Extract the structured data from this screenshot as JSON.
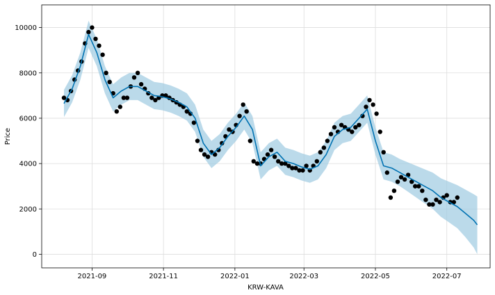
{
  "chart_data": {
    "type": "scatter",
    "title": "",
    "xlabel": "KRW-KAVA",
    "ylabel": "Price",
    "xlim": [
      "2021-07-20",
      "2022-08-07"
    ],
    "ylim": [
      -600,
      11000
    ],
    "x_ticks": [
      "2021-09",
      "2021-11",
      "2022-01",
      "2022-03",
      "2022-05",
      "2022-07"
    ],
    "y_ticks": [
      0,
      2000,
      4000,
      6000,
      8000,
      10000
    ],
    "grid": true,
    "colors": {
      "observed": "#000000",
      "forecast": "#0072B2",
      "interval": "#9ecae1"
    },
    "series": [
      {
        "role": "observed",
        "x": [
          "2021-08-08",
          "2021-08-11",
          "2021-08-14",
          "2021-08-17",
          "2021-08-20",
          "2021-08-23",
          "2021-08-26",
          "2021-08-29",
          "2021-09-01",
          "2021-09-04",
          "2021-09-07",
          "2021-09-10",
          "2021-09-13",
          "2021-09-16",
          "2021-09-19",
          "2021-09-22",
          "2021-09-25",
          "2021-09-28",
          "2021-10-01",
          "2021-10-04",
          "2021-10-07",
          "2021-10-10",
          "2021-10-13",
          "2021-10-16",
          "2021-10-19",
          "2021-10-22",
          "2021-10-25",
          "2021-10-28",
          "2021-10-31",
          "2021-11-03",
          "2021-11-06",
          "2021-11-09",
          "2021-11-12",
          "2021-11-15",
          "2021-11-18",
          "2021-11-21",
          "2021-11-24",
          "2021-11-27",
          "2021-11-30",
          "2021-12-03",
          "2021-12-06",
          "2021-12-09",
          "2021-12-12",
          "2021-12-15",
          "2021-12-18",
          "2021-12-21",
          "2021-12-24",
          "2021-12-27",
          "2021-12-30",
          "2022-01-02",
          "2022-01-05",
          "2022-01-08",
          "2022-01-11",
          "2022-01-14",
          "2022-01-17",
          "2022-01-20",
          "2022-01-23",
          "2022-01-26",
          "2022-01-29",
          "2022-02-01",
          "2022-02-04",
          "2022-02-07",
          "2022-02-10",
          "2022-02-13",
          "2022-02-16",
          "2022-02-19",
          "2022-02-22",
          "2022-02-25",
          "2022-02-28",
          "2022-03-03",
          "2022-03-06",
          "2022-03-09",
          "2022-03-12",
          "2022-03-15",
          "2022-03-18",
          "2022-03-21",
          "2022-03-24",
          "2022-03-27",
          "2022-03-30",
          "2022-04-02",
          "2022-04-05",
          "2022-04-08",
          "2022-04-11",
          "2022-04-14",
          "2022-04-17",
          "2022-04-20",
          "2022-04-23",
          "2022-04-26",
          "2022-04-29",
          "2022-05-02",
          "2022-05-05",
          "2022-05-08",
          "2022-05-11",
          "2022-05-14",
          "2022-05-17",
          "2022-05-20",
          "2022-05-23",
          "2022-05-26",
          "2022-05-29",
          "2022-06-01",
          "2022-06-04",
          "2022-06-07",
          "2022-06-10",
          "2022-06-13",
          "2022-06-16",
          "2022-06-19",
          "2022-06-22",
          "2022-06-25",
          "2022-06-28",
          "2022-07-01",
          "2022-07-04",
          "2022-07-07",
          "2022-07-10"
        ],
        "y": [
          6900,
          6800,
          7200,
          7700,
          8100,
          8500,
          9300,
          9800,
          10000,
          9500,
          9200,
          8800,
          8000,
          7600,
          7100,
          6300,
          6500,
          6900,
          6900,
          7400,
          7800,
          8000,
          7500,
          7300,
          7100,
          6900,
          6800,
          6900,
          7000,
          7000,
          6900,
          6800,
          6700,
          6600,
          6500,
          6300,
          6200,
          5800,
          5000,
          4600,
          4400,
          4300,
          4500,
          4400,
          4600,
          4900,
          5200,
          5500,
          5400,
          5700,
          6100,
          6600,
          6300,
          5000,
          4100,
          4000,
          4000,
          4200,
          4400,
          4600,
          4300,
          4100,
          4000,
          4000,
          3900,
          3800,
          3800,
          3700,
          3700,
          3900,
          3700,
          3900,
          4100,
          4500,
          4700,
          5000,
          5300,
          5600,
          5400,
          5700,
          5600,
          5500,
          5400,
          5600,
          5700,
          6100,
          6500,
          6800,
          6600,
          6200,
          5400,
          4500,
          3600,
          2500,
          2800,
          3200,
          3400,
          3300,
          3500,
          3200,
          3000,
          3000,
          2800,
          2400,
          2200,
          2200,
          2400,
          2300,
          2500,
          2600,
          2300,
          2300,
          2500
        ]
      },
      {
        "role": "forecast",
        "x": [
          "2021-08-08",
          "2021-08-15",
          "2021-08-22",
          "2021-08-29",
          "2021-09-05",
          "2021-09-12",
          "2021-09-19",
          "2021-09-26",
          "2021-10-03",
          "2021-10-10",
          "2021-10-17",
          "2021-10-24",
          "2021-10-31",
          "2021-11-07",
          "2021-11-14",
          "2021-11-21",
          "2021-11-28",
          "2021-12-05",
          "2021-12-12",
          "2021-12-19",
          "2021-12-26",
          "2022-01-02",
          "2022-01-09",
          "2022-01-16",
          "2022-01-23",
          "2022-01-30",
          "2022-02-06",
          "2022-02-13",
          "2022-02-20",
          "2022-02-27",
          "2022-03-06",
          "2022-03-13",
          "2022-03-20",
          "2022-03-27",
          "2022-04-03",
          "2022-04-10",
          "2022-04-17",
          "2022-04-24",
          "2022-05-01",
          "2022-05-08",
          "2022-05-15",
          "2022-05-22",
          "2022-05-29",
          "2022-06-05",
          "2022-06-12",
          "2022-06-19",
          "2022-06-26",
          "2022-07-03",
          "2022-07-10",
          "2022-07-17",
          "2022-07-24",
          "2022-07-27"
        ],
        "y": [
          6650,
          7300,
          8300,
          9700,
          8900,
          7700,
          6900,
          7200,
          7400,
          7400,
          7200,
          7000,
          6950,
          6850,
          6700,
          6500,
          6000,
          4900,
          4400,
          4700,
          5200,
          5600,
          6100,
          5500,
          3900,
          4300,
          4500,
          4100,
          4000,
          3850,
          3750,
          3900,
          4400,
          5200,
          5500,
          5600,
          6000,
          6400,
          5000,
          3900,
          3800,
          3600,
          3400,
          3200,
          3000,
          2800,
          2500,
          2300,
          2100,
          1800,
          1500,
          1300
        ]
      },
      {
        "role": "interval_upper",
        "x": [
          "2021-08-08",
          "2021-08-15",
          "2021-08-22",
          "2021-08-29",
          "2021-09-05",
          "2021-09-12",
          "2021-09-19",
          "2021-09-26",
          "2021-10-03",
          "2021-10-10",
          "2021-10-17",
          "2021-10-24",
          "2021-10-31",
          "2021-11-07",
          "2021-11-14",
          "2021-11-21",
          "2021-11-28",
          "2021-12-05",
          "2021-12-12",
          "2021-12-19",
          "2021-12-26",
          "2022-01-02",
          "2022-01-09",
          "2022-01-16",
          "2022-01-23",
          "2022-01-30",
          "2022-02-06",
          "2022-02-13",
          "2022-02-20",
          "2022-02-27",
          "2022-03-06",
          "2022-03-13",
          "2022-03-20",
          "2022-03-27",
          "2022-04-03",
          "2022-04-10",
          "2022-04-17",
          "2022-04-24",
          "2022-05-01",
          "2022-05-08",
          "2022-05-15",
          "2022-05-22",
          "2022-05-29",
          "2022-06-05",
          "2022-06-12",
          "2022-06-19",
          "2022-06-26",
          "2022-07-03",
          "2022-07-10",
          "2022-07-17",
          "2022-07-24",
          "2022-07-27"
        ],
        "y": [
          7250,
          7900,
          8900,
          10300,
          9500,
          8300,
          7500,
          7800,
          8000,
          8000,
          7800,
          7600,
          7550,
          7450,
          7300,
          7100,
          6600,
          5500,
          5000,
          5300,
          5800,
          6200,
          6700,
          6100,
          4500,
          4900,
          5100,
          4700,
          4600,
          4450,
          4350,
          4500,
          5000,
          5800,
          6100,
          6200,
          6600,
          7000,
          5600,
          4500,
          4400,
          4200,
          4050,
          3900,
          3750,
          3600,
          3350,
          3200,
          3050,
          2850,
          2650,
          2550
        ]
      },
      {
        "role": "interval_lower",
        "x": [
          "2021-08-08",
          "2021-08-15",
          "2021-08-22",
          "2021-08-29",
          "2021-09-05",
          "2021-09-12",
          "2021-09-19",
          "2021-09-26",
          "2021-10-03",
          "2021-10-10",
          "2021-10-17",
          "2021-10-24",
          "2021-10-31",
          "2021-11-07",
          "2021-11-14",
          "2021-11-21",
          "2021-11-28",
          "2021-12-05",
          "2021-12-12",
          "2021-12-19",
          "2021-12-26",
          "2022-01-02",
          "2022-01-09",
          "2022-01-16",
          "2022-01-23",
          "2022-01-30",
          "2022-02-06",
          "2022-02-13",
          "2022-02-20",
          "2022-02-27",
          "2022-03-06",
          "2022-03-13",
          "2022-03-20",
          "2022-03-27",
          "2022-04-03",
          "2022-04-10",
          "2022-04-17",
          "2022-04-24",
          "2022-05-01",
          "2022-05-08",
          "2022-05-15",
          "2022-05-22",
          "2022-05-29",
          "2022-06-05",
          "2022-06-12",
          "2022-06-19",
          "2022-06-26",
          "2022-07-03",
          "2022-07-10",
          "2022-07-17",
          "2022-07-24",
          "2022-07-27"
        ],
        "y": [
          6050,
          6700,
          7700,
          9100,
          8300,
          7100,
          6300,
          6600,
          6800,
          6800,
          6600,
          6400,
          6350,
          6250,
          6100,
          5900,
          5400,
          4300,
          3800,
          4100,
          4600,
          5000,
          5500,
          4900,
          3300,
          3700,
          3900,
          3500,
          3400,
          3250,
          3150,
          3300,
          3800,
          4600,
          4900,
          5000,
          5400,
          5800,
          4400,
          3300,
          3200,
          3000,
          2750,
          2500,
          2250,
          2000,
          1650,
          1400,
          1150,
          750,
          300,
          0
        ]
      }
    ]
  }
}
